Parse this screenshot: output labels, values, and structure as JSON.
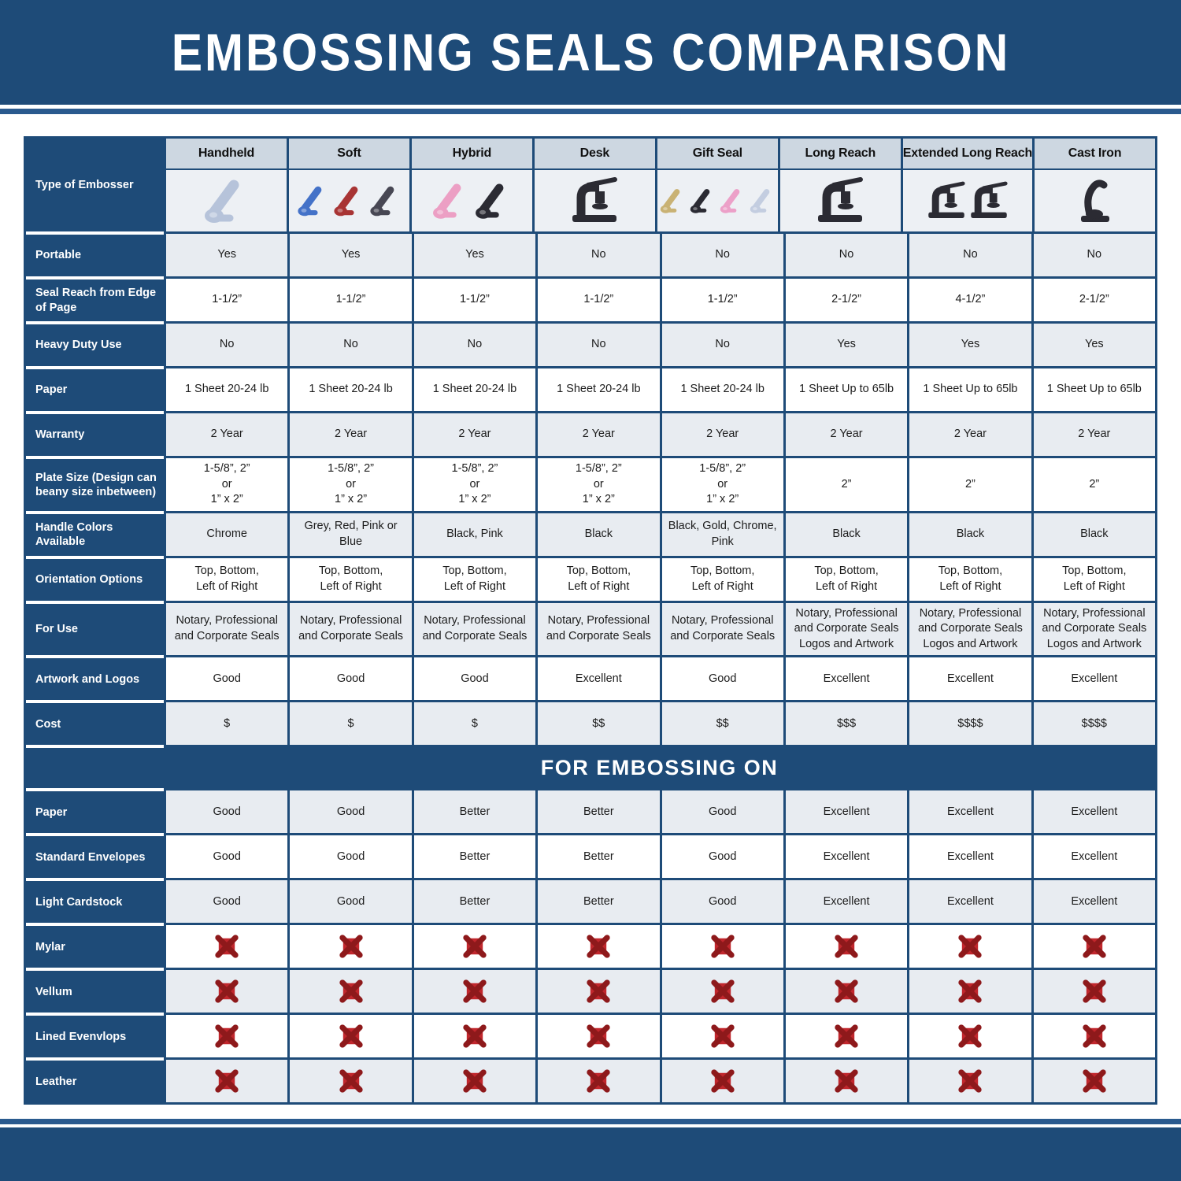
{
  "title": "EMBOSSING SEALS COMPARISON",
  "section_header": "FOR EMBOSSING ON",
  "corner_label": "Type of Embosser",
  "colors": {
    "navy": "#1e4b78",
    "stripe_blue": "#2a5a8e",
    "column_header_bg": "#cdd7e1",
    "image_row_bg": "#edf0f4",
    "zebra_gray": "#e8ecf1",
    "x_icon_red": "#c1272d",
    "x_icon_dark_red": "#8e191b"
  },
  "chart_data": {
    "type": "table",
    "title": "EMBOSSING SEALS COMPARISON",
    "columns": [
      {
        "name": "Handheld",
        "image_style": "clamp",
        "image_colors": [
          "#b6c3da"
        ]
      },
      {
        "name": "Soft",
        "image_style": "clamp",
        "image_colors": [
          "#4472c8",
          "#a83434",
          "#474753"
        ]
      },
      {
        "name": "Hybrid",
        "image_style": "clamp",
        "image_colors": [
          "#ec9fc4",
          "#2b2b33"
        ]
      },
      {
        "name": "Desk",
        "image_style": "press",
        "image_colors": [
          "#2b2b33"
        ]
      },
      {
        "name": "Gift Seal",
        "image_style": "clamp",
        "image_colors": [
          "#c9b274",
          "#2b2b33",
          "#eca0c8",
          "#c3cde0"
        ]
      },
      {
        "name": "Long Reach",
        "image_style": "press",
        "image_colors": [
          "#2b2b33"
        ]
      },
      {
        "name": "Extended Long Reach",
        "image_style": "press",
        "image_colors": [
          "#2b2b33",
          "#2b2b33"
        ]
      },
      {
        "name": "Cast Iron",
        "image_style": "cast",
        "image_colors": [
          "#2b2b33"
        ]
      }
    ],
    "sections": [
      {
        "name": "specifications",
        "rows": [
          {
            "label": "Portable",
            "values": [
              "Yes",
              "Yes",
              "Yes",
              "No",
              "No",
              "No",
              "No",
              "No"
            ]
          },
          {
            "label": "Seal Reach from Edge\nof Page",
            "values": [
              "1-1/2”",
              "1-1/2”",
              "1-1/2”",
              "1-1/2”",
              "1-1/2”",
              "2-1/2”",
              "4-1/2”",
              "2-1/2”"
            ]
          },
          {
            "label": "Heavy Duty Use",
            "values": [
              "No",
              "No",
              "No",
              "No",
              "No",
              "Yes",
              "Yes",
              "Yes"
            ]
          },
          {
            "label": "Paper",
            "values": [
              "1 Sheet 20-24 lb",
              "1 Sheet 20-24 lb",
              "1 Sheet 20-24 lb",
              "1 Sheet 20-24 lb",
              "1 Sheet 20-24 lb",
              "1 Sheet Up to 65lb",
              "1 Sheet Up to 65lb",
              "1 Sheet Up to 65lb"
            ]
          },
          {
            "label": "Warranty",
            "values": [
              "2 Year",
              "2 Year",
              "2 Year",
              "2 Year",
              "2 Year",
              "2 Year",
              "2 Year",
              "2 Year"
            ]
          },
          {
            "label": "Plate Size (Design can\nbeany size inbetween)",
            "values": [
              "1-5/8”, 2”\nor\n1” x 2”",
              "1-5/8”, 2”\nor\n1” x 2”",
              "1-5/8”, 2”\nor\n1” x 2”",
              "1-5/8”, 2”\nor\n1” x 2”",
              "1-5/8”, 2”\nor\n1” x 2”",
              "2”",
              "2”",
              "2”"
            ]
          },
          {
            "label": "Handle Colors Available",
            "values": [
              "Chrome",
              "Grey, Red, Pink or Blue",
              "Black, Pink",
              "Black",
              "Black, Gold, Chrome, Pink",
              "Black",
              "Black",
              "Black"
            ]
          },
          {
            "label": "Orientation Options",
            "values": [
              "Top, Bottom,\nLeft of Right",
              "Top, Bottom,\nLeft of Right",
              "Top, Bottom,\nLeft of Right",
              "Top, Bottom,\nLeft of Right",
              "Top, Bottom,\nLeft of Right",
              "Top, Bottom,\nLeft of Right",
              "Top, Bottom,\nLeft of Right",
              "Top, Bottom,\nLeft of Right"
            ]
          },
          {
            "label": "For Use",
            "values": [
              "Notary, Professional\nand Corporate Seals",
              "Notary, Professional\nand Corporate Seals",
              "Notary, Professional\nand Corporate Seals",
              "Notary, Professional\nand Corporate Seals",
              "Notary, Professional\nand Corporate Seals",
              "Notary, Professional\nand Corporate Seals\nLogos and Artwork",
              "Notary, Professional\nand Corporate Seals\nLogos and Artwork",
              "Notary, Professional\nand Corporate Seals\nLogos and Artwork"
            ]
          },
          {
            "label": "Artwork and Logos",
            "values": [
              "Good",
              "Good",
              "Good",
              "Excellent",
              "Good",
              "Excellent",
              "Excellent",
              "Excellent"
            ]
          },
          {
            "label": "Cost",
            "values": [
              "$",
              "$",
              "$",
              "$$",
              "$$",
              "$$$",
              "$$$$",
              "$$$$"
            ]
          }
        ]
      },
      {
        "name": "for_embossing_on",
        "header": "FOR EMBOSSING ON",
        "rows": [
          {
            "label": "Paper",
            "values": [
              "Good",
              "Good",
              "Better",
              "Better",
              "Good",
              "Excellent",
              "Excellent",
              "Excellent"
            ]
          },
          {
            "label": "Standard Envelopes",
            "values": [
              "Good",
              "Good",
              "Better",
              "Better",
              "Good",
              "Excellent",
              "Excellent",
              "Excellent"
            ]
          },
          {
            "label": "Light Cardstock",
            "values": [
              "Good",
              "Good",
              "Better",
              "Better",
              "Good",
              "Excellent",
              "Excellent",
              "Excellent"
            ]
          },
          {
            "label": "Mylar",
            "values": [
              "red-x-icon",
              "red-x-icon",
              "red-x-icon",
              "red-x-icon",
              "red-x-icon",
              "red-x-icon",
              "red-x-icon",
              "red-x-icon"
            ]
          },
          {
            "label": "Vellum",
            "values": [
              "red-x-icon",
              "red-x-icon",
              "red-x-icon",
              "red-x-icon",
              "red-x-icon",
              "red-x-icon",
              "red-x-icon",
              "red-x-icon"
            ]
          },
          {
            "label": "Lined Evenvlops",
            "values": [
              "red-x-icon",
              "red-x-icon",
              "red-x-icon",
              "red-x-icon",
              "red-x-icon",
              "red-x-icon",
              "red-x-icon",
              "red-x-icon"
            ]
          },
          {
            "label": "Leather",
            "values": [
              "red-x-icon",
              "red-x-icon",
              "red-x-icon",
              "red-x-icon",
              "red-x-icon",
              "red-x-icon",
              "red-x-icon",
              "red-x-icon"
            ]
          }
        ]
      }
    ]
  }
}
